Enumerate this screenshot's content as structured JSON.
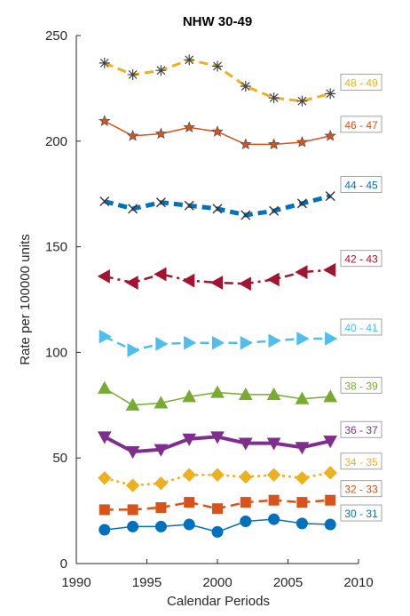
{
  "chart_data": {
    "type": "line",
    "title": "NHW 30-49",
    "xlabel": "Calendar Periods",
    "ylabel": "Rate per 100000 units",
    "xlim": [
      1990,
      2010
    ],
    "ylim": [
      0,
      250
    ],
    "xticks": [
      1990,
      1995,
      2000,
      2005,
      2010
    ],
    "yticks": [
      0,
      50,
      100,
      150,
      200,
      250
    ],
    "grid": false,
    "x": [
      1992,
      1994,
      1996,
      1998,
      2000,
      2002,
      2004,
      2006,
      2008
    ],
    "series": [
      {
        "name": "30 - 31",
        "color": "#0072BD",
        "marker": "circle",
        "line": "solid",
        "width": 1.5,
        "values": [
          16,
          17.5,
          17.5,
          18.5,
          15,
          20,
          21,
          19,
          18.5
        ]
      },
      {
        "name": "32 - 33",
        "color": "#D95319",
        "marker": "square",
        "line": "dashed",
        "width": 2.5,
        "values": [
          25.5,
          25.5,
          26.5,
          29,
          26,
          29,
          30,
          29,
          30
        ]
      },
      {
        "name": "34 - 35",
        "color": "#EDB120",
        "marker": "diamond",
        "line": "dotted",
        "width": 2.5,
        "values": [
          40.5,
          37,
          38,
          42,
          42,
          41,
          42,
          40.5,
          43
        ]
      },
      {
        "name": "36 - 37",
        "color": "#7E2F8E",
        "marker": "triangle-down",
        "line": "solid",
        "width": 4,
        "values": [
          60,
          53,
          54,
          59,
          60,
          57,
          57,
          55,
          58
        ]
      },
      {
        "name": "38 - 39",
        "color": "#77AC30",
        "marker": "triangle-up",
        "line": "solid",
        "width": 1.5,
        "values": [
          83,
          75,
          76,
          79,
          81,
          80,
          80,
          78,
          79
        ]
      },
      {
        "name": "40 - 41",
        "color": "#4DBEEE",
        "marker": "triangle-right",
        "line": "dashed",
        "width": 2.5,
        "values": [
          107.5,
          101,
          104,
          104.5,
          104.5,
          104.5,
          105.5,
          106.5,
          106.5
        ]
      },
      {
        "name": "42 - 43",
        "color": "#A2142F",
        "marker": "triangle-left",
        "line": "dashdot",
        "width": 2.5,
        "values": [
          136,
          133,
          137,
          134,
          133,
          132.5,
          134.5,
          138,
          139
        ]
      },
      {
        "name": "44 - 45",
        "color": "#0072BD",
        "marker": "x",
        "line": "dashed",
        "width": 5,
        "values": [
          171.5,
          168,
          171,
          169.5,
          168,
          165,
          167,
          170.5,
          174
        ]
      },
      {
        "name": "46 - 47",
        "color": "#D95319",
        "marker": "star",
        "line": "solid",
        "width": 1.5,
        "values": [
          209.5,
          202.5,
          203.5,
          206.5,
          204.5,
          198.5,
          198.5,
          199.5,
          202.5
        ]
      },
      {
        "name": "48 - 49",
        "color": "#EDB120",
        "marker": "asterisk",
        "line": "dashed",
        "width": 3,
        "values": [
          237,
          231.5,
          233.5,
          238.5,
          235.5,
          226,
          220.5,
          219,
          222.5
        ]
      }
    ]
  }
}
